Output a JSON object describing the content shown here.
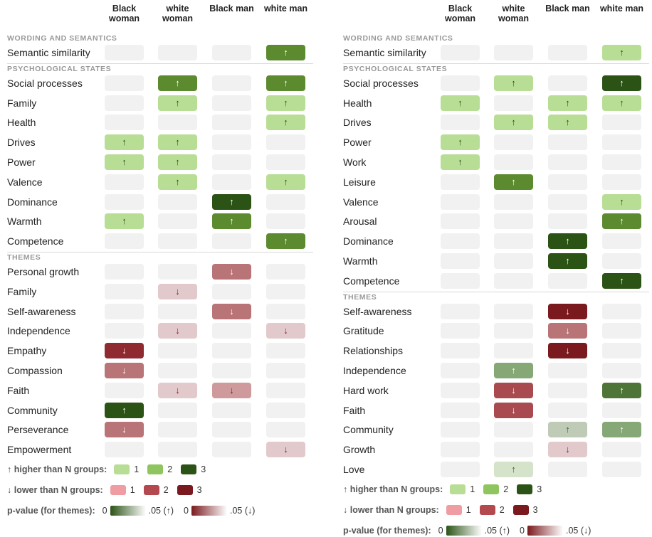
{
  "chart_data": [
    {
      "type": "table",
      "columns": [
        "Black woman",
        "white woman",
        "Black man",
        "white man"
      ],
      "sections": [
        {
          "title": "WORDING AND SEMANTICS",
          "rows": [
            {
              "label": "Semantic similarity",
              "cells": [
                "",
                "",
                "",
                "up3"
              ]
            }
          ]
        },
        {
          "title": "PSYCHOLOGICAL STATES",
          "rows": [
            {
              "label": "Social processes",
              "cells": [
                "",
                "up3",
                "",
                "up3"
              ]
            },
            {
              "label": "Family",
              "cells": [
                "",
                "up1",
                "",
                "up1"
              ]
            },
            {
              "label": "Health",
              "cells": [
                "",
                "",
                "",
                "up1"
              ]
            },
            {
              "label": "Drives",
              "cells": [
                "up1",
                "up1",
                "",
                ""
              ]
            },
            {
              "label": "Power",
              "cells": [
                "up1",
                "up1",
                "",
                ""
              ]
            },
            {
              "label": "Valence",
              "cells": [
                "",
                "up1",
                "",
                "up1"
              ]
            },
            {
              "label": "Dominance",
              "cells": [
                "",
                "",
                "up4",
                ""
              ]
            },
            {
              "label": "Warmth",
              "cells": [
                "up1",
                "",
                "up3",
                ""
              ]
            },
            {
              "label": "Competence",
              "cells": [
                "",
                "",
                "",
                "up3"
              ]
            }
          ]
        },
        {
          "title": "THEMES",
          "rows": [
            {
              "label": "Personal growth",
              "cells": [
                "",
                "",
                "down_mid",
                ""
              ]
            },
            {
              "label": "Family",
              "cells": [
                "",
                "down_faint",
                "",
                ""
              ]
            },
            {
              "label": "Self-awareness",
              "cells": [
                "",
                "",
                "down_mid",
                ""
              ]
            },
            {
              "label": "Independence",
              "cells": [
                "",
                "down_faint",
                "",
                "down_faint"
              ]
            },
            {
              "label": "Empathy",
              "cells": [
                "down_dark",
                "",
                "",
                ""
              ]
            },
            {
              "label": "Compassion",
              "cells": [
                "down_mid",
                "",
                "",
                ""
              ]
            },
            {
              "label": "Faith",
              "cells": [
                "",
                "down_faint",
                "down_light",
                ""
              ]
            },
            {
              "label": "Community",
              "cells": [
                "up4",
                "",
                "",
                ""
              ]
            },
            {
              "label": "Perseverance",
              "cells": [
                "down_mid",
                "",
                "",
                ""
              ]
            },
            {
              "label": "Empowerment",
              "cells": [
                "",
                "",
                "",
                "down_faint"
              ]
            }
          ]
        }
      ]
    },
    {
      "type": "table",
      "columns": [
        "Black woman",
        "white woman",
        "Black man",
        "white man"
      ],
      "sections": [
        {
          "title": "WORDING AND SEMANTICS",
          "rows": [
            {
              "label": "Semantic similarity",
              "cells": [
                "",
                "",
                "",
                "up1"
              ]
            }
          ]
        },
        {
          "title": "PSYCHOLOGICAL STATES",
          "rows": [
            {
              "label": "Social processes",
              "cells": [
                "",
                "up1",
                "",
                "up4"
              ]
            },
            {
              "label": "Health",
              "cells": [
                "up1",
                "",
                "up1",
                "up1"
              ]
            },
            {
              "label": "Drives",
              "cells": [
                "",
                "up1",
                "up1",
                ""
              ]
            },
            {
              "label": "Power",
              "cells": [
                "up1",
                "",
                "",
                ""
              ]
            },
            {
              "label": "Work",
              "cells": [
                "up1",
                "",
                "",
                ""
              ]
            },
            {
              "label": "Leisure",
              "cells": [
                "",
                "up3",
                "",
                ""
              ]
            },
            {
              "label": "Valence",
              "cells": [
                "",
                "",
                "",
                "up1"
              ]
            },
            {
              "label": "Arousal",
              "cells": [
                "",
                "",
                "",
                "up3"
              ]
            },
            {
              "label": "Dominance",
              "cells": [
                "",
                "",
                "up4",
                ""
              ]
            },
            {
              "label": "Warmth",
              "cells": [
                "",
                "",
                "up4",
                ""
              ]
            },
            {
              "label": "Competence",
              "cells": [
                "",
                "",
                "",
                "up4"
              ]
            }
          ]
        },
        {
          "title": "THEMES",
          "rows": [
            {
              "label": "Self-awareness",
              "cells": [
                "",
                "",
                "down_darkest",
                ""
              ]
            },
            {
              "label": "Gratitude",
              "cells": [
                "",
                "",
                "down_mid",
                ""
              ]
            },
            {
              "label": "Relationships",
              "cells": [
                "",
                "",
                "down_darkest",
                ""
              ]
            },
            {
              "label": "Independence",
              "cells": [
                "",
                "up_pmid",
                "",
                ""
              ]
            },
            {
              "label": "Hard work",
              "cells": [
                "",
                "down_dark2",
                "",
                "up_pdark"
              ]
            },
            {
              "label": "Faith",
              "cells": [
                "",
                "down_dark2",
                "",
                ""
              ]
            },
            {
              "label": "Community",
              "cells": [
                "",
                "",
                "up_plight",
                "up_pmid"
              ]
            },
            {
              "label": "Growth",
              "cells": [
                "",
                "",
                "down_faint",
                ""
              ]
            },
            {
              "label": "Love",
              "cells": [
                "",
                "up_pfaint",
                "",
                ""
              ]
            }
          ]
        }
      ]
    }
  ],
  "legend": {
    "higher_label": "↑ higher than N groups:",
    "lower_label": "↓ lower than N groups:",
    "pvalue_label": "p-value (for themes):",
    "n1": "1",
    "n2": "2",
    "n3": "3",
    "p_zero": "0",
    "p_up_end": ".05 (↑)",
    "p_down_end": ".05 (↓)"
  },
  "colors": {
    "cell_empty": "#f1f1f1",
    "up1": "#b8dd95",
    "up2": "#8fc55f",
    "up3": "#5c8a2f",
    "up4": "#2c5316",
    "down1": "#ef9da3",
    "down2": "#b3484e",
    "down3": "#7a1a1e"
  }
}
